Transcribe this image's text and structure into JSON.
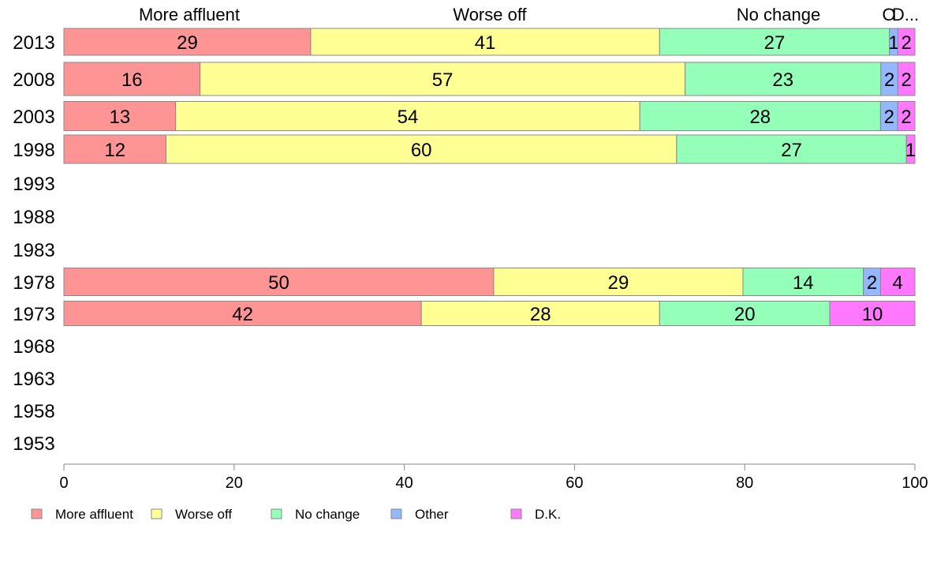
{
  "chart_data": {
    "type": "bar",
    "orientation": "horizontal",
    "stacked": true,
    "categories": [
      "2013",
      "2008",
      "2003",
      "1998",
      "1993",
      "1988",
      "1983",
      "1978",
      "1973",
      "1968",
      "1963",
      "1958",
      "1953"
    ],
    "series": [
      {
        "name": "More affluent",
        "color": "#ff9494",
        "values": [
          29,
          16,
          13,
          12,
          null,
          null,
          null,
          50,
          42,
          null,
          null,
          null,
          null
        ]
      },
      {
        "name": "Worse off",
        "color": "#ffff94",
        "values": [
          41,
          57,
          54,
          60,
          null,
          null,
          null,
          29,
          28,
          null,
          null,
          null,
          null
        ]
      },
      {
        "name": "No change",
        "color": "#94ffb8",
        "values": [
          27,
          23,
          28,
          27,
          null,
          null,
          null,
          14,
          20,
          null,
          null,
          null,
          null
        ]
      },
      {
        "name": "Other",
        "color": "#94b8ff",
        "values": [
          1,
          2,
          2,
          0,
          null,
          null,
          null,
          2,
          0,
          null,
          null,
          null,
          null
        ]
      },
      {
        "name": "D.K.",
        "color": "#ff78ff",
        "values": [
          2,
          2,
          2,
          1,
          null,
          null,
          null,
          4,
          10,
          null,
          null,
          null,
          null
        ]
      }
    ],
    "column_headers": [
      "More affluent",
      "Worse off",
      "No change",
      "O",
      "D..."
    ],
    "xlim": [
      0,
      100
    ],
    "xticks": [
      "0",
      "20",
      "40",
      "60",
      "80",
      "100"
    ],
    "legend_position": "bottom",
    "grid": false
  }
}
